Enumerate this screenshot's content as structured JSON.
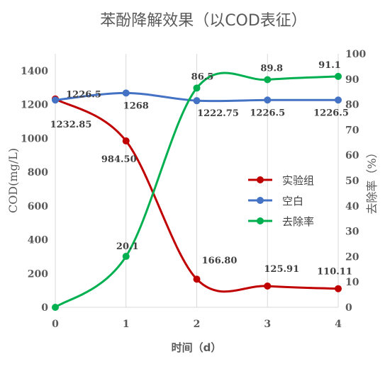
{
  "chart_data": {
    "type": "line",
    "title": "苯酚降解效果（以COD表征）",
    "xlabel": "时间（d）",
    "ylabel_left": "COD(mg/L)",
    "ylabel_right": "去除率（%）",
    "x": [
      0,
      1,
      2,
      3,
      4
    ],
    "x_ticks": [
      "0",
      "1",
      "2",
      "3",
      "4"
    ],
    "ylim_left": [
      0,
      1500
    ],
    "yticks_left": [
      "0",
      "200",
      "400",
      "600",
      "800",
      "1000",
      "1200",
      "1400"
    ],
    "ylim_right": [
      0,
      100
    ],
    "yticks_right": [
      "0",
      "10",
      "20",
      "30",
      "40",
      "50",
      "60",
      "70",
      "80",
      "90",
      "100"
    ],
    "grid": "vertical",
    "legend_position": "right",
    "series": [
      {
        "name": "实验组",
        "axis": "left",
        "color": "#c00000",
        "values": [
          1232.85,
          984.5,
          166.8,
          125.91,
          110.11
        ],
        "labels": [
          "1232.85",
          "984.50",
          "166.80",
          "125.91",
          "110.11"
        ]
      },
      {
        "name": "空白",
        "axis": "left",
        "color": "#4472c4",
        "values": [
          1226.5,
          1268,
          1222.75,
          1226.5,
          1226.5
        ],
        "labels": [
          "1226.5",
          "1268",
          "1222.75",
          "1226.5",
          "1226.5"
        ]
      },
      {
        "name": "去除率",
        "axis": "right",
        "color": "#00b050",
        "values": [
          0,
          20.1,
          86.5,
          89.8,
          91.1
        ],
        "labels": [
          "",
          "20.1",
          "86.5",
          "89.8",
          "91.1"
        ]
      }
    ]
  }
}
